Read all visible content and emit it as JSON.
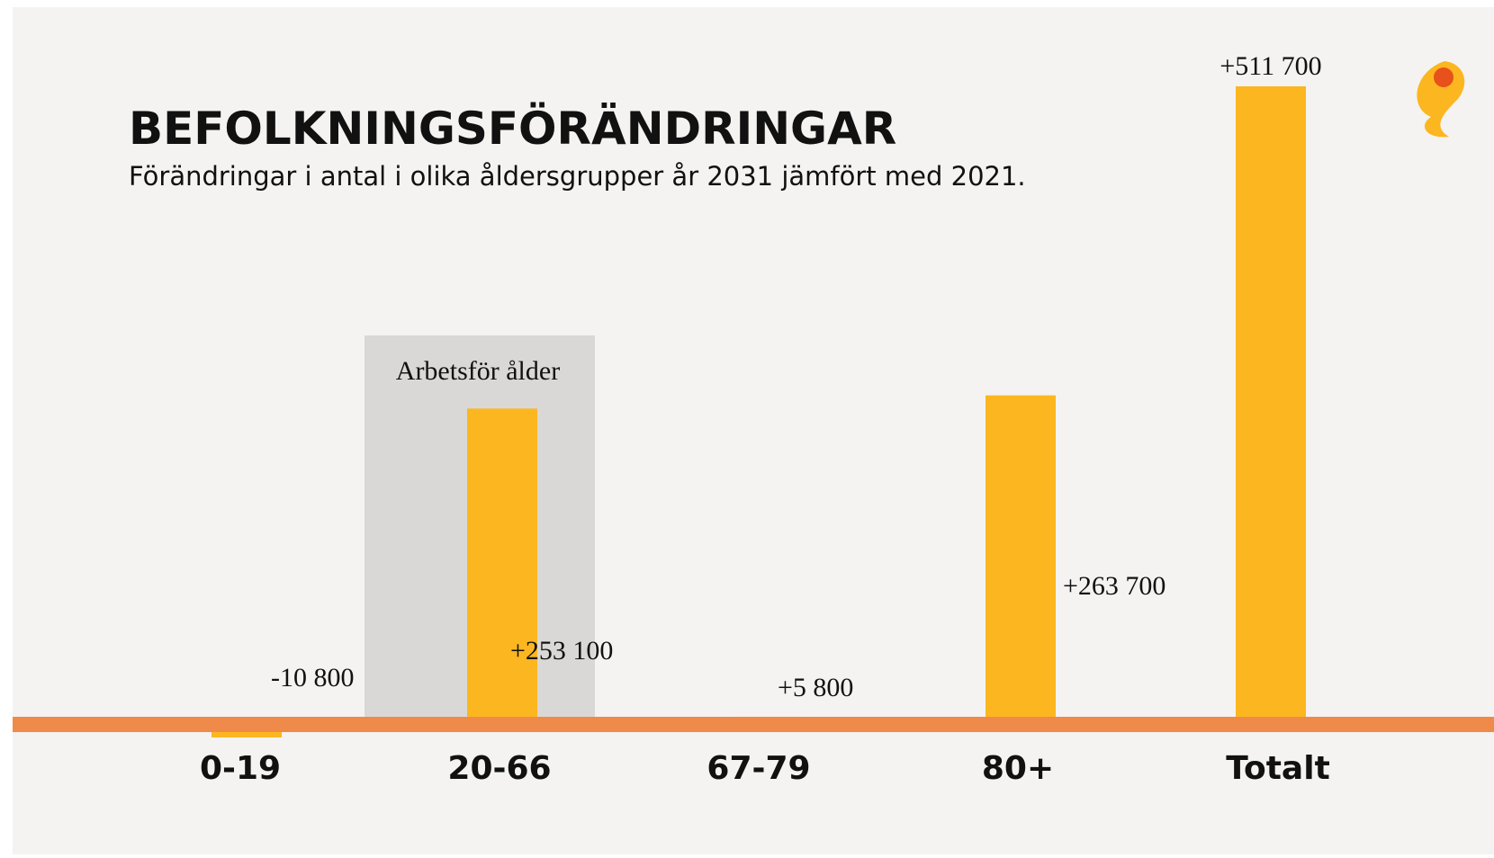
{
  "chart_data": {
    "type": "bar",
    "title": "BEFOLKNINGSFÖRÄNDRINGAR",
    "subtitle": "Förändringar i antal i olika åldersgrupper år 2031 jämfört med 2021.",
    "annotation": "Arbetsför ålder",
    "categories": [
      "0-19",
      "20-66",
      "67-79",
      "80+",
      "Totalt"
    ],
    "values": [
      -10800,
      253100,
      5800,
      263700,
      511700
    ],
    "value_labels": [
      "-10 800",
      "+253 100",
      "+5 800",
      "+263 700",
      "+511 700"
    ],
    "color": "#fcb61f"
  }
}
